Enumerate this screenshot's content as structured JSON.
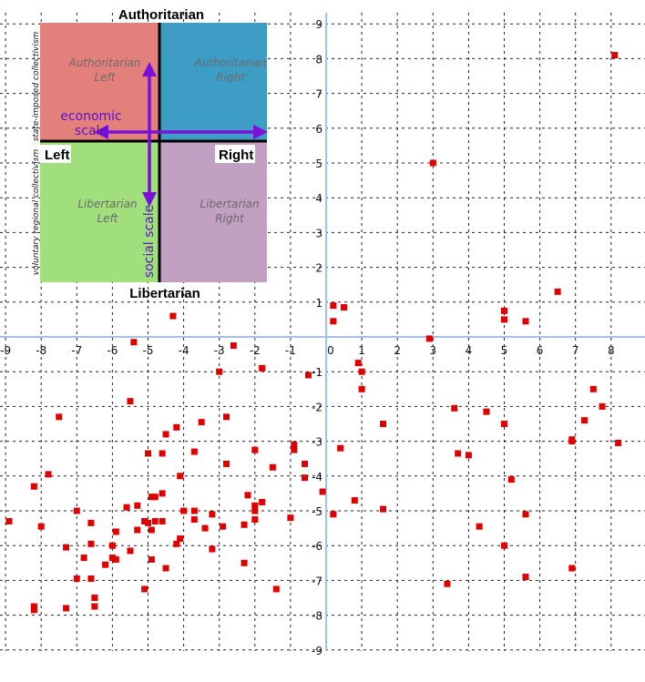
{
  "chart_data": {
    "type": "scatter",
    "title": "",
    "xlim": [
      -9,
      9
    ],
    "ylim": [
      -9,
      9
    ],
    "x_ticks": [
      "-9",
      "-8",
      "-7",
      "-6",
      "-5",
      "-4",
      "-3",
      "-2",
      "-1",
      "0",
      "1",
      "2",
      "3",
      "4",
      "5",
      "6",
      "7",
      "8"
    ],
    "y_ticks": [
      "9",
      "8",
      "7",
      "6",
      "5",
      "4",
      "3",
      "2",
      "1",
      "0",
      "-1",
      "-2",
      "-3",
      "-4",
      "-5",
      "-6",
      "-7",
      "-8",
      "-9"
    ],
    "grid": true,
    "point_color": "#e00000",
    "axis_color": "#9ec3f2",
    "points": [
      {
        "x": 8.1,
        "y": 8.1
      },
      {
        "x": 3.0,
        "y": 5.0
      },
      {
        "x": 6.5,
        "y": 1.3
      },
      {
        "x": 0.2,
        "y": 0.9
      },
      {
        "x": 0.5,
        "y": 0.85
      },
      {
        "x": 0.2,
        "y": 0.45
      },
      {
        "x": 5.0,
        "y": 0.75
      },
      {
        "x": 5.0,
        "y": 0.5
      },
      {
        "x": 5.6,
        "y": 0.45
      },
      {
        "x": 2.9,
        "y": -0.05
      },
      {
        "x": -4.3,
        "y": 0.6
      },
      {
        "x": -5.4,
        "y": -0.15
      },
      {
        "x": -2.6,
        "y": -0.25
      },
      {
        "x": -3.0,
        "y": -1.0
      },
      {
        "x": -1.8,
        "y": -0.9
      },
      {
        "x": -0.5,
        "y": -1.1
      },
      {
        "x": 0.9,
        "y": -0.75
      },
      {
        "x": 1.0,
        "y": -1.0
      },
      {
        "x": 1.0,
        "y": -1.5
      },
      {
        "x": -5.5,
        "y": -1.85
      },
      {
        "x": -7.5,
        "y": -2.3
      },
      {
        "x": -4.2,
        "y": -2.6
      },
      {
        "x": -3.5,
        "y": -2.45
      },
      {
        "x": -2.8,
        "y": -2.3
      },
      {
        "x": -4.5,
        "y": -2.8
      },
      {
        "x": 1.6,
        "y": -2.5
      },
      {
        "x": 3.6,
        "y": -2.05
      },
      {
        "x": 4.5,
        "y": -2.15
      },
      {
        "x": 5.0,
        "y": -2.5
      },
      {
        "x": 7.5,
        "y": -1.5
      },
      {
        "x": 7.75,
        "y": -2.0
      },
      {
        "x": 7.25,
        "y": -2.4
      },
      {
        "x": 6.9,
        "y": -2.95
      },
      {
        "x": 6.9,
        "y": -3.0
      },
      {
        "x": 8.2,
        "y": -3.05
      },
      {
        "x": -5.0,
        "y": -3.35
      },
      {
        "x": -4.6,
        "y": -3.35
      },
      {
        "x": -3.7,
        "y": -3.3
      },
      {
        "x": -2.0,
        "y": -3.25
      },
      {
        "x": -0.9,
        "y": -3.1
      },
      {
        "x": -0.9,
        "y": -3.25
      },
      {
        "x": 0.4,
        "y": -3.2
      },
      {
        "x": 3.7,
        "y": -3.35
      },
      {
        "x": 4.0,
        "y": -3.4
      },
      {
        "x": -2.8,
        "y": -3.65
      },
      {
        "x": -1.5,
        "y": -3.75
      },
      {
        "x": -0.6,
        "y": -3.65
      },
      {
        "x": -7.8,
        "y": -3.95
      },
      {
        "x": -4.1,
        "y": -4.0
      },
      {
        "x": -0.6,
        "y": -4.05
      },
      {
        "x": 5.2,
        "y": -4.1
      },
      {
        "x": -8.2,
        "y": -4.3
      },
      {
        "x": -2.2,
        "y": -4.55
      },
      {
        "x": -4.9,
        "y": -4.6
      },
      {
        "x": -4.6,
        "y": -4.5
      },
      {
        "x": -4.8,
        "y": -4.6
      },
      {
        "x": -5.3,
        "y": -4.85
      },
      {
        "x": -5.6,
        "y": -4.9
      },
      {
        "x": -1.8,
        "y": -4.75
      },
      {
        "x": -2.0,
        "y": -4.85
      },
      {
        "x": -2.0,
        "y": -5.0
      },
      {
        "x": -0.1,
        "y": -4.45
      },
      {
        "x": 0.8,
        "y": -4.7
      },
      {
        "x": 1.6,
        "y": -4.95
      },
      {
        "x": -7.0,
        "y": -5.0
      },
      {
        "x": -4.0,
        "y": -5.0
      },
      {
        "x": -3.7,
        "y": -5.0
      },
      {
        "x": -3.2,
        "y": -5.1
      },
      {
        "x": -1.0,
        "y": -5.2
      },
      {
        "x": 0.2,
        "y": -5.1
      },
      {
        "x": 5.6,
        "y": -5.1
      },
      {
        "x": -8.9,
        "y": -5.3
      },
      {
        "x": -8.0,
        "y": -5.45
      },
      {
        "x": -6.6,
        "y": -5.35
      },
      {
        "x": -5.1,
        "y": -5.3
      },
      {
        "x": -5.0,
        "y": -5.35
      },
      {
        "x": -4.8,
        "y": -5.3
      },
      {
        "x": -4.6,
        "y": -5.3
      },
      {
        "x": -3.7,
        "y": -5.25
      },
      {
        "x": -2.9,
        "y": -5.45
      },
      {
        "x": -2.3,
        "y": -5.4
      },
      {
        "x": -2.0,
        "y": -5.25
      },
      {
        "x": -5.9,
        "y": -5.6
      },
      {
        "x": -5.3,
        "y": -5.55
      },
      {
        "x": -4.9,
        "y": -5.55
      },
      {
        "x": -3.4,
        "y": -5.5
      },
      {
        "x": 4.3,
        "y": -5.45
      },
      {
        "x": -4.1,
        "y": -5.8
      },
      {
        "x": -4.2,
        "y": -5.95
      },
      {
        "x": -6.6,
        "y": -5.95
      },
      {
        "x": -6.0,
        "y": -6.0
      },
      {
        "x": -7.3,
        "y": -6.05
      },
      {
        "x": -3.2,
        "y": -6.1
      },
      {
        "x": -5.5,
        "y": -6.15
      },
      {
        "x": 5.0,
        "y": -6.0
      },
      {
        "x": -6.8,
        "y": -6.35
      },
      {
        "x": -6.0,
        "y": -6.35
      },
      {
        "x": -5.9,
        "y": -6.4
      },
      {
        "x": -4.9,
        "y": -6.4
      },
      {
        "x": -6.2,
        "y": -6.55
      },
      {
        "x": -4.5,
        "y": -6.65
      },
      {
        "x": -2.3,
        "y": -6.5
      },
      {
        "x": 6.9,
        "y": -6.65
      },
      {
        "x": -7.0,
        "y": -6.95
      },
      {
        "x": -6.6,
        "y": -6.95
      },
      {
        "x": 5.6,
        "y": -6.9
      },
      {
        "x": 3.4,
        "y": -7.1
      },
      {
        "x": -5.1,
        "y": -7.25
      },
      {
        "x": -1.4,
        "y": -7.25
      },
      {
        "x": -6.5,
        "y": -7.5
      },
      {
        "x": -6.5,
        "y": -7.75
      },
      {
        "x": -7.3,
        "y": -7.8
      },
      {
        "x": -8.2,
        "y": -7.75
      },
      {
        "x": -8.2,
        "y": -7.85
      }
    ]
  },
  "inset": {
    "top_label": "Authoritarian",
    "bottom_label": "Libertarian",
    "left_label": "Left",
    "right_label": "Right",
    "quadrants": {
      "tl": {
        "line1": "Authoritarian",
        "line2": "Left",
        "color": "#e3807c"
      },
      "tr": {
        "line1": "Authoritarian",
        "line2": "Right",
        "color": "#3d9dc5"
      },
      "bl": {
        "line1": "Libertarian",
        "line2": "Left",
        "color": "#a1df7d"
      },
      "br": {
        "line1": "Libertarian",
        "line2": "Right",
        "color": "#c1a0c1"
      }
    },
    "economic_scale_line1": "economic",
    "economic_scale_line2": "scale",
    "social_scale": "social scale",
    "side_top": "state-imposed collectivism",
    "side_bottom": "voluntary regional collectivism",
    "arrow_color": "#7a10d9"
  }
}
